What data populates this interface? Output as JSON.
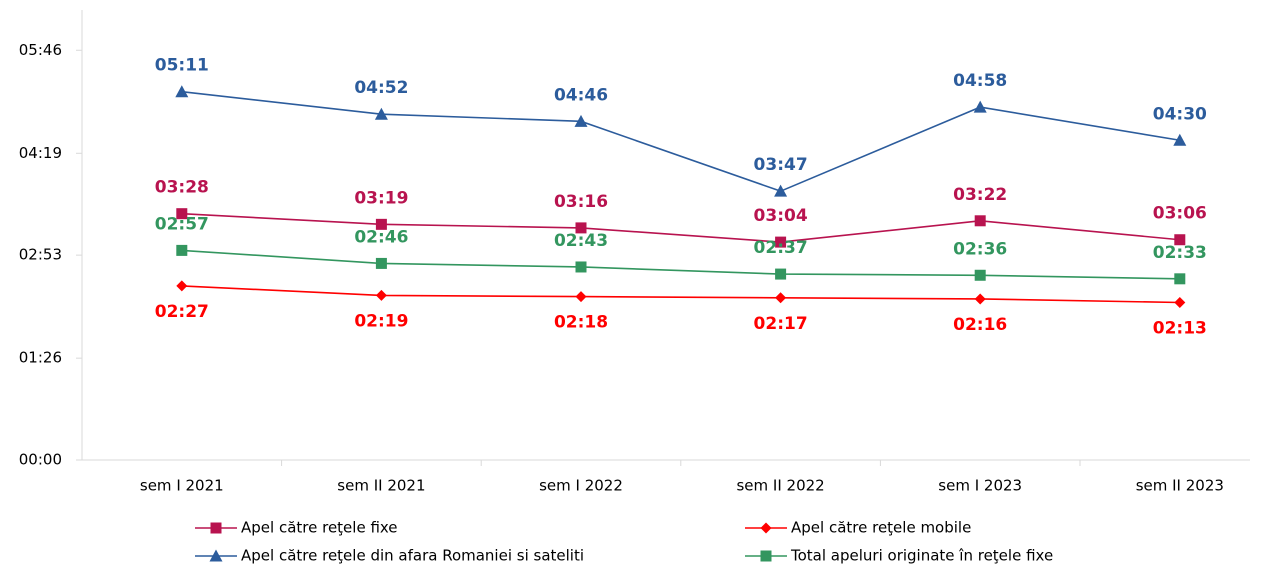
{
  "chart_data": {
    "type": "line",
    "categories": [
      "sem I 2021",
      "sem II 2021",
      "sem I 2022",
      "sem II 2022",
      "sem I 2023",
      "sem II 2023"
    ],
    "series": [
      {
        "name": "Apel către reţele fixe",
        "color": "#b8134f",
        "marker": "square",
        "values": [
          208,
          199,
          196,
          184,
          202,
          186
        ],
        "value_labels": [
          "03:28",
          "03:19",
          "03:16",
          "03:04",
          "03:22",
          "03:06"
        ]
      },
      {
        "name": "Apel către reţele mobile",
        "color": "#ff0000",
        "marker": "diamond",
        "values": [
          147,
          139,
          138,
          137,
          136,
          133
        ],
        "value_labels": [
          "02:27",
          "02:19",
          "02:18",
          "02:17",
          "02:16",
          "02:13"
        ]
      },
      {
        "name": "Apel către reţele din afara Romaniei si sateliti",
        "color": "#2c5c9c",
        "marker": "triangle",
        "values": [
          311,
          292,
          286,
          227,
          298,
          270
        ],
        "value_labels": [
          "05:11",
          "04:52",
          "04:46",
          "03:47",
          "04:58",
          "04:30"
        ]
      },
      {
        "name": "Total apeluri originate în reţele fixe",
        "color": "#33965f",
        "marker": "square",
        "values": [
          177,
          166,
          163,
          157,
          156,
          153
        ],
        "value_labels": [
          "02:57",
          "02:46",
          "02:43",
          "02:37",
          "02:36",
          "02:33"
        ]
      }
    ],
    "ylim": [
      0,
      380
    ],
    "yticks": [
      {
        "value": 0,
        "label": "00:00"
      },
      {
        "value": 86,
        "label": "01:26"
      },
      {
        "value": 173,
        "label": "02:53"
      },
      {
        "value": 259,
        "label": "04:19"
      },
      {
        "value": 346,
        "label": "05:46"
      }
    ],
    "legend": "bottom"
  }
}
